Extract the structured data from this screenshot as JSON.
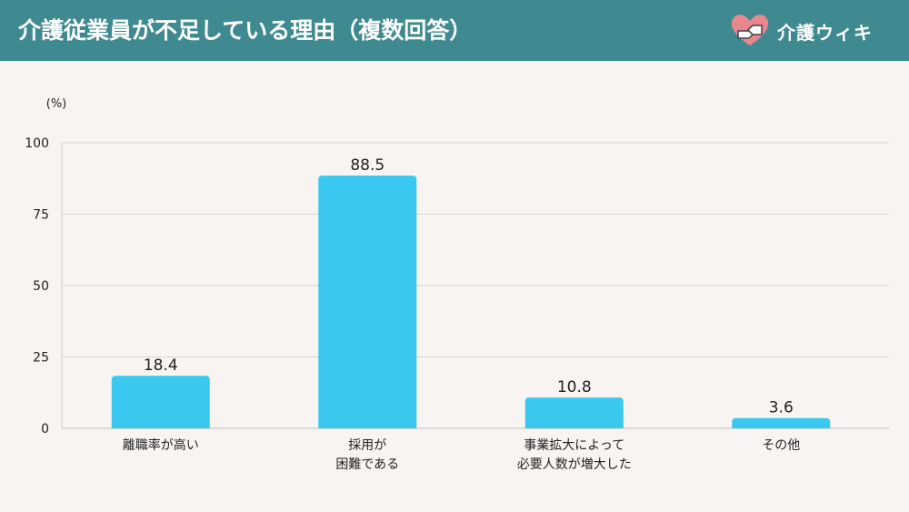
{
  "header": {
    "title": "介護従業員が不足している理由（複数回答）"
  },
  "brand": {
    "name": "介護ウィキ"
  },
  "colors": {
    "header_bg": "#3f8a90",
    "bar": "#3ac8ef",
    "background": "#f7f4f2",
    "logo_pink": "#e9868e"
  },
  "chart_data": {
    "type": "bar",
    "title": "介護従業員が不足している理由（複数回答）",
    "unit_label": "(%)",
    "categories": [
      "離職率が高い",
      "採用が\n困難である",
      "事業拡大によって\n必要人数が増大した",
      "その他"
    ],
    "values": [
      18.4,
      88.5,
      10.8,
      3.6
    ],
    "value_labels": [
      "18.4",
      "88.5",
      "10.8",
      "3.6"
    ],
    "ylim": [
      0,
      100
    ],
    "yticks": [
      0,
      25,
      50,
      75,
      100
    ],
    "grid": true
  }
}
